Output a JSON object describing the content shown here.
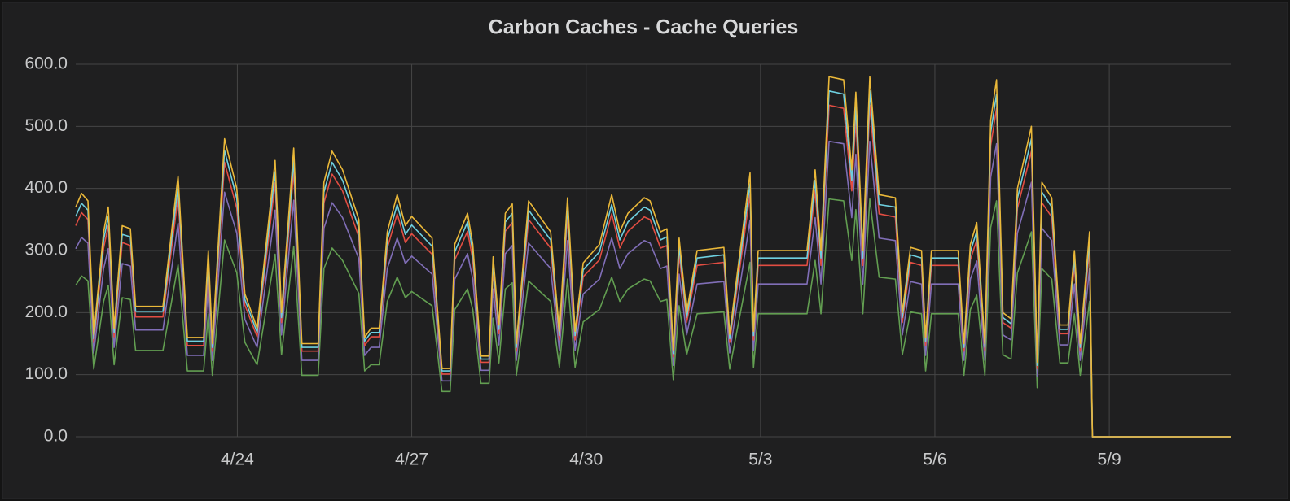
{
  "chart_data": {
    "type": "line",
    "title": "Carbon Caches - Cache Queries",
    "grid": true,
    "xlim": [
      111.22,
      131.1
    ],
    "xticks": [
      {
        "value": 114,
        "label": "4/24"
      },
      {
        "value": 117,
        "label": "4/27"
      },
      {
        "value": 120,
        "label": "4/30"
      },
      {
        "value": 123,
        "label": "5/3"
      },
      {
        "value": 126,
        "label": "5/6"
      },
      {
        "value": 129,
        "label": "5/9"
      }
    ],
    "ylim": [
      0,
      600
    ],
    "yticks": [
      {
        "value": 0,
        "label": "0.0"
      },
      {
        "value": 100,
        "label": "100.0"
      },
      {
        "value": 200,
        "label": "200.0"
      },
      {
        "value": 300,
        "label": "300.0"
      },
      {
        "value": 400,
        "label": "400.0"
      },
      {
        "value": 500,
        "label": "500.0"
      },
      {
        "value": 600,
        "label": "600.0"
      }
    ],
    "x": [
      111.22,
      111.32,
      111.43,
      111.53,
      111.7,
      111.78,
      111.88,
      112.02,
      112.16,
      112.25,
      112.72,
      112.98,
      113.14,
      113.42,
      113.5,
      113.57,
      113.78,
      113.99,
      114.13,
      114.34,
      114.65,
      114.76,
      114.97,
      115.11,
      115.39,
      115.49,
      115.63,
      115.81,
      116.09,
      116.19,
      116.3,
      116.44,
      116.58,
      116.75,
      116.89,
      117.0,
      117.35,
      117.52,
      117.66,
      117.74,
      117.96,
      118.05,
      118.19,
      118.33,
      118.4,
      118.5,
      118.61,
      118.73,
      118.8,
      119.01,
      119.39,
      119.54,
      119.68,
      119.81,
      119.95,
      120.23,
      120.44,
      120.58,
      120.72,
      121.0,
      121.1,
      121.28,
      121.39,
      121.5,
      121.6,
      121.73,
      121.91,
      122.37,
      122.47,
      122.61,
      122.82,
      122.88,
      122.96,
      123.8,
      123.94,
      124.04,
      124.18,
      124.43,
      124.57,
      124.64,
      124.76,
      124.88,
      125.04,
      125.32,
      125.44,
      125.58,
      125.77,
      125.84,
      125.94,
      126.4,
      126.5,
      126.61,
      126.72,
      126.86,
      126.96,
      127.06,
      127.17,
      127.31,
      127.42,
      127.66,
      127.76,
      127.84,
      128.01,
      128.15,
      128.29,
      128.4,
      128.5,
      128.66,
      128.71,
      131.1
    ],
    "series": [
      {
        "color": "#629e51",
        "values": [
          244,
          259,
          251,
          109,
          218,
          244,
          116,
          224,
          221,
          139,
          139,
          277,
          106,
          106,
          198,
          99,
          317,
          264,
          152,
          116,
          294,
          132,
          307,
          99,
          99,
          271,
          304,
          284,
          231,
          106,
          116,
          116,
          218,
          257,
          224,
          234,
          211,
          73,
          73,
          205,
          238,
          205,
          86,
          86,
          191,
          119,
          238,
          248,
          99,
          251,
          218,
          112,
          254,
          112,
          185,
          205,
          257,
          218,
          238,
          254,
          251,
          218,
          221,
          92,
          211,
          132,
          198,
          201,
          109,
          178,
          281,
          112,
          198,
          198,
          284,
          198,
          383,
          380,
          284,
          366,
          198,
          383,
          257,
          254,
          132,
          201,
          198,
          106,
          198,
          198,
          99,
          205,
          228,
          99,
          337,
          380,
          132,
          125,
          264,
          330,
          79,
          271,
          254,
          119,
          119,
          198,
          99,
          218,
          0,
          0
        ]
      },
      {
        "color": "#806eb7",
        "values": [
          303,
          321,
          312,
          135,
          271,
          303,
          144,
          279,
          275,
          172,
          172,
          344,
          131,
          131,
          246,
          123,
          394,
          328,
          189,
          144,
          365,
          164,
          381,
          123,
          123,
          336,
          377,
          353,
          287,
          131,
          144,
          144,
          271,
          320,
          279,
          291,
          262,
          90,
          90,
          254,
          295,
          254,
          107,
          107,
          238,
          148,
          295,
          308,
          123,
          312,
          271,
          139,
          316,
          139,
          230,
          254,
          320,
          271,
          295,
          316,
          312,
          271,
          275,
          115,
          262,
          164,
          246,
          250,
          135,
          221,
          349,
          139,
          246,
          246,
          353,
          246,
          476,
          472,
          353,
          455,
          246,
          476,
          320,
          316,
          164,
          250,
          246,
          131,
          246,
          246,
          123,
          254,
          283,
          123,
          418,
          472,
          164,
          156,
          328,
          410,
          98,
          336,
          316,
          148,
          148,
          246,
          123,
          271,
          0,
          0
        ]
      },
      {
        "color": "#e24d42",
        "values": [
          340,
          361,
          350,
          152,
          304,
          340,
          161,
          313,
          308,
          193,
          193,
          386,
          147,
          147,
          276,
          138,
          442,
          368,
          212,
          161,
          409,
          184,
          428,
          138,
          138,
          377,
          423,
          396,
          322,
          147,
          161,
          161,
          304,
          359,
          313,
          327,
          294,
          101,
          101,
          285,
          331,
          285,
          120,
          120,
          267,
          166,
          331,
          345,
          138,
          350,
          304,
          156,
          354,
          156,
          258,
          285,
          359,
          304,
          331,
          354,
          350,
          304,
          308,
          129,
          294,
          184,
          276,
          281,
          152,
          248,
          391,
          156,
          276,
          276,
          396,
          276,
          534,
          529,
          396,
          511,
          276,
          534,
          359,
          354,
          184,
          281,
          276,
          147,
          276,
          276,
          138,
          285,
          317,
          138,
          469,
          529,
          184,
          175,
          368,
          460,
          110,
          377,
          354,
          166,
          166,
          276,
          138,
          304,
          0,
          0
        ]
      },
      {
        "color": "#6ed0e0",
        "values": [
          355,
          376,
          365,
          158,
          317,
          355,
          168,
          326,
          322,
          202,
          202,
          403,
          154,
          154,
          288,
          144,
          461,
          384,
          221,
          168,
          427,
          192,
          446,
          144,
          144,
          394,
          442,
          413,
          336,
          154,
          168,
          168,
          317,
          374,
          326,
          341,
          307,
          106,
          106,
          298,
          346,
          298,
          125,
          125,
          278,
          173,
          346,
          360,
          144,
          365,
          317,
          163,
          370,
          163,
          269,
          298,
          374,
          317,
          346,
          370,
          365,
          317,
          322,
          134,
          307,
          192,
          288,
          293,
          158,
          259,
          408,
          163,
          288,
          288,
          413,
          288,
          557,
          552,
          413,
          533,
          288,
          557,
          374,
          370,
          192,
          293,
          288,
          154,
          288,
          288,
          144,
          298,
          331,
          144,
          490,
          552,
          192,
          182,
          384,
          480,
          115,
          394,
          370,
          173,
          173,
          288,
          144,
          317,
          0,
          0
        ]
      },
      {
        "color": "#eab839",
        "values": [
          370,
          392,
          380,
          165,
          330,
          370,
          175,
          340,
          335,
          210,
          210,
          420,
          160,
          160,
          300,
          150,
          480,
          400,
          230,
          175,
          445,
          200,
          465,
          150,
          150,
          410,
          460,
          430,
          350,
          160,
          175,
          175,
          330,
          390,
          340,
          355,
          320,
          110,
          110,
          310,
          360,
          310,
          130,
          130,
          290,
          180,
          360,
          375,
          150,
          380,
          330,
          170,
          385,
          170,
          280,
          310,
          390,
          330,
          360,
          385,
          380,
          330,
          335,
          140,
          320,
          200,
          300,
          305,
          165,
          270,
          425,
          170,
          300,
          300,
          430,
          300,
          580,
          575,
          430,
          555,
          300,
          580,
          390,
          385,
          200,
          305,
          300,
          160,
          300,
          300,
          150,
          310,
          345,
          150,
          510,
          575,
          200,
          190,
          400,
          500,
          120,
          410,
          385,
          180,
          180,
          300,
          150,
          330,
          0,
          0
        ]
      }
    ]
  }
}
